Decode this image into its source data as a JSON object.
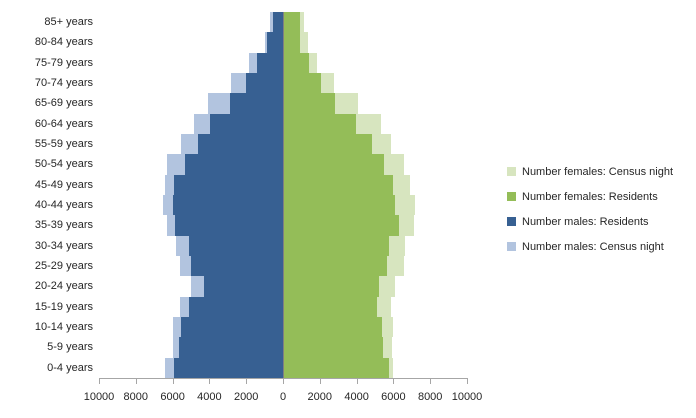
{
  "chart_data": {
    "type": "bar",
    "subtype": "population-pyramid",
    "title": "",
    "categories": [
      "85+ years",
      "80-84 years",
      "75-79 years",
      "70-74 years",
      "65-69 years",
      "60-64 years",
      "55-59 years",
      "50-54 years",
      "45-49 years",
      "40-44 years",
      "35-39 years",
      "30-34 years",
      "25-29 years",
      "20-24 years",
      "15-19 years",
      "10-14 years",
      "5-9 years",
      "0-4 years"
    ],
    "series": [
      {
        "key": "females-census-night",
        "name": "Number females: Census night",
        "color": "#D7E5BF",
        "side": "right",
        "layer": "back",
        "values": [
          1150,
          1350,
          1850,
          2750,
          4050,
          5300,
          5850,
          6600,
          6900,
          7200,
          7100,
          6650,
          6550,
          6100,
          5850,
          6000,
          5900,
          6000
        ]
      },
      {
        "key": "females-residents",
        "name": "Number females: Residents",
        "color": "#94BD58",
        "side": "right",
        "layer": "front",
        "values": [
          950,
          950,
          1400,
          2050,
          2850,
          3950,
          4850,
          5500,
          6000,
          6100,
          6300,
          5750,
          5650,
          5200,
          5100,
          5400,
          5450,
          5750
        ]
      },
      {
        "key": "males-residents",
        "name": "Number males: Residents",
        "color": "#376092",
        "side": "left",
        "layer": "front",
        "values": [
          550,
          850,
          1400,
          2000,
          2900,
          3950,
          4600,
          5300,
          5900,
          6000,
          5850,
          5100,
          5000,
          4300,
          5100,
          5550,
          5650,
          5950
        ]
      },
      {
        "key": "males-census-night",
        "name": "Number males: Census night",
        "color": "#B2C4DF",
        "side": "left",
        "layer": "back",
        "values": [
          700,
          1000,
          1850,
          2800,
          4050,
          4850,
          5550,
          6300,
          6400,
          6500,
          6300,
          5800,
          5600,
          5000,
          5600,
          6000,
          6000,
          6400
        ]
      }
    ],
    "x_axis": {
      "tick_labels": [
        "10000",
        "8000",
        "6000",
        "4000",
        "2000",
        "0",
        "2000",
        "4000",
        "6000",
        "8000",
        "10000"
      ],
      "max_each_side": 10000,
      "tick_interval": 2000
    },
    "ylabel": "",
    "xlabel": "",
    "grid": false,
    "legend_position": "right",
    "axis_line_color": "#A6A6A6",
    "text_color": "#262626",
    "background_color": "#FFFFFF"
  }
}
